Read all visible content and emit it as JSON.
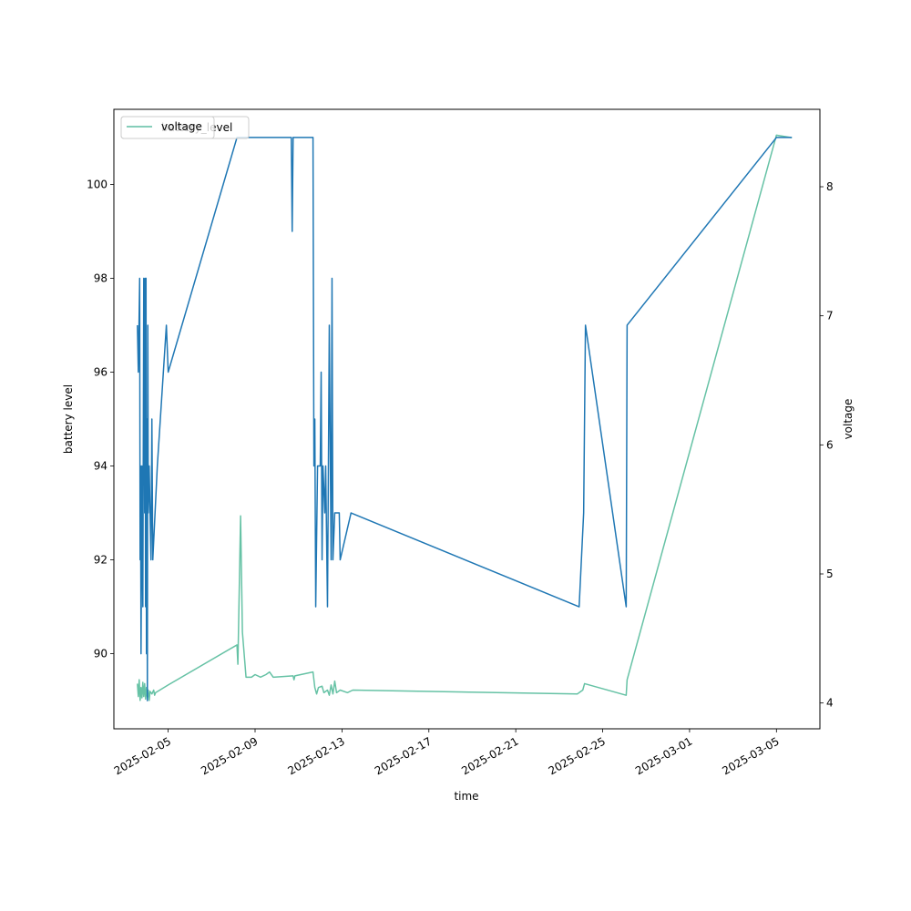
{
  "chart_data": {
    "type": "line",
    "title": "",
    "xlabel": "time",
    "ylabel_left": "battery level",
    "ylabel_right": "voltage",
    "xlim": [
      "2025-02-02T12:00",
      "2025-03-07T00:00"
    ],
    "ylim_left": [
      88.4,
      101.6
    ],
    "ylim_right": [
      3.8,
      8.6
    ],
    "x_ticks": [
      "2025-02-05",
      "2025-02-09",
      "2025-02-13",
      "2025-02-17",
      "2025-02-21",
      "2025-02-25",
      "2025-03-01",
      "2025-03-05"
    ],
    "y_ticks_left": [
      90,
      92,
      94,
      96,
      98,
      100
    ],
    "y_ticks_right": [
      4,
      5,
      6,
      7,
      8
    ],
    "grid": false,
    "colors": {
      "battery_level": "#1f77b4",
      "voltage": "#66c2a5"
    },
    "legends": [
      {
        "position": "top-left",
        "label": "voltage"
      },
      {
        "position": "top-left",
        "label": "battery_level"
      }
    ],
    "series": [
      {
        "name": "battery_level",
        "axis": "left",
        "points": [
          [
            "2025-02-03T14:00",
            97
          ],
          [
            "2025-02-03T15:00",
            96
          ],
          [
            "2025-02-03T16:30",
            98
          ],
          [
            "2025-02-03T17:00",
            92
          ],
          [
            "2025-02-03T17:30",
            94
          ],
          [
            "2025-02-03T18:00",
            90
          ],
          [
            "2025-02-03T19:00",
            94
          ],
          [
            "2025-02-03T20:00",
            91
          ],
          [
            "2025-02-03T21:00",
            98
          ],
          [
            "2025-02-03T22:00",
            93
          ],
          [
            "2025-02-03T22:30",
            98
          ],
          [
            "2025-02-03T23:00",
            91
          ],
          [
            "2025-02-03T23:30",
            98
          ],
          [
            "2025-02-04T00:00",
            90
          ],
          [
            "2025-02-04T00:30",
            95
          ],
          [
            "2025-02-04T01:00",
            89
          ],
          [
            "2025-02-04T01:30",
            97
          ],
          [
            "2025-02-04T02:00",
            93
          ],
          [
            "2025-02-04T03:00",
            94
          ],
          [
            "2025-02-04T05:00",
            92
          ],
          [
            "2025-02-04T06:00",
            95
          ],
          [
            "2025-02-04T07:00",
            92
          ],
          [
            "2025-02-04T12:00",
            94
          ],
          [
            "2025-02-04T22:00",
            97
          ],
          [
            "2025-02-05T00:00",
            96
          ],
          [
            "2025-02-08T04:00",
            101
          ],
          [
            "2025-02-09T12:00",
            101
          ],
          [
            "2025-02-10T16:00",
            101
          ],
          [
            "2025-02-10T17:00",
            99
          ],
          [
            "2025-02-10T18:00",
            101
          ],
          [
            "2025-02-11T16:00",
            101
          ],
          [
            "2025-02-11T17:00",
            94
          ],
          [
            "2025-02-11T18:00",
            95
          ],
          [
            "2025-02-11T19:00",
            91
          ],
          [
            "2025-02-11T21:00",
            94
          ],
          [
            "2025-02-12T00:00",
            94
          ],
          [
            "2025-02-12T01:00",
            96
          ],
          [
            "2025-02-12T02:00",
            92
          ],
          [
            "2025-02-12T03:00",
            94
          ],
          [
            "2025-02-12T05:00",
            93
          ],
          [
            "2025-02-12T06:00",
            94
          ],
          [
            "2025-02-12T08:00",
            91
          ],
          [
            "2025-02-12T10:00",
            97
          ],
          [
            "2025-02-12T12:00",
            92
          ],
          [
            "2025-02-12T13:00",
            98
          ],
          [
            "2025-02-12T14:00",
            92
          ],
          [
            "2025-02-12T16:00",
            93
          ],
          [
            "2025-02-12T21:00",
            93
          ],
          [
            "2025-02-12T22:00",
            92
          ],
          [
            "2025-02-13T10:00",
            93
          ],
          [
            "2025-02-23T22:00",
            91
          ],
          [
            "2025-02-24T03:00",
            93
          ],
          [
            "2025-02-24T05:00",
            97
          ],
          [
            "2025-02-26T02:00",
            91
          ],
          [
            "2025-02-26T03:00",
            97
          ],
          [
            "2025-03-05T00:00",
            101
          ],
          [
            "2025-03-05T17:00",
            101
          ]
        ]
      },
      {
        "name": "voltage",
        "axis": "right",
        "points": [
          [
            "2025-02-03T14:00",
            4.15
          ],
          [
            "2025-02-03T15:00",
            4.05
          ],
          [
            "2025-02-03T16:00",
            4.18
          ],
          [
            "2025-02-03T17:00",
            4.02
          ],
          [
            "2025-02-03T18:00",
            4.12
          ],
          [
            "2025-02-03T19:00",
            4.04
          ],
          [
            "2025-02-03T20:00",
            4.16
          ],
          [
            "2025-02-03T21:00",
            4.05
          ],
          [
            "2025-02-03T22:00",
            4.15
          ],
          [
            "2025-02-03T23:00",
            4.03
          ],
          [
            "2025-02-04T00:00",
            4.12
          ],
          [
            "2025-02-04T01:00",
            4.04
          ],
          [
            "2025-02-04T02:00",
            4.1
          ],
          [
            "2025-02-04T03:00",
            4.02
          ],
          [
            "2025-02-04T04:00",
            4.09
          ],
          [
            "2025-02-04T06:00",
            4.07
          ],
          [
            "2025-02-04T08:00",
            4.1
          ],
          [
            "2025-02-04T09:00",
            4.06
          ],
          [
            "2025-02-04T10:00",
            4.08
          ],
          [
            "2025-02-05T00:00",
            4.14
          ],
          [
            "2025-02-08T04:00",
            4.45
          ],
          [
            "2025-02-08T05:00",
            4.3
          ],
          [
            "2025-02-08T08:00",
            5.45
          ],
          [
            "2025-02-08T10:00",
            4.55
          ],
          [
            "2025-02-08T14:00",
            4.2
          ],
          [
            "2025-02-08T20:00",
            4.2
          ],
          [
            "2025-02-09T00:00",
            4.22
          ],
          [
            "2025-02-09T06:00",
            4.2
          ],
          [
            "2025-02-09T12:00",
            4.22
          ],
          [
            "2025-02-09T16:00",
            4.24
          ],
          [
            "2025-02-09T20:00",
            4.2
          ],
          [
            "2025-02-10T18:00",
            4.21
          ],
          [
            "2025-02-10T19:00",
            4.18
          ],
          [
            "2025-02-10T20:00",
            4.21
          ],
          [
            "2025-02-11T16:00",
            4.24
          ],
          [
            "2025-02-11T18:00",
            4.12
          ],
          [
            "2025-02-11T20:00",
            4.07
          ],
          [
            "2025-02-11T22:00",
            4.12
          ],
          [
            "2025-02-12T02:00",
            4.13
          ],
          [
            "2025-02-12T04:00",
            4.08
          ],
          [
            "2025-02-12T08:00",
            4.1
          ],
          [
            "2025-02-12T10:00",
            4.06
          ],
          [
            "2025-02-12T12:00",
            4.14
          ],
          [
            "2025-02-12T14:00",
            4.07
          ],
          [
            "2025-02-12T16:00",
            4.17
          ],
          [
            "2025-02-12T18:00",
            4.08
          ],
          [
            "2025-02-12T22:00",
            4.1
          ],
          [
            "2025-02-13T06:00",
            4.08
          ],
          [
            "2025-02-13T12:00",
            4.1
          ],
          [
            "2025-02-23T20:00",
            4.07
          ],
          [
            "2025-02-24T02:00",
            4.1
          ],
          [
            "2025-02-24T04:00",
            4.15
          ],
          [
            "2025-02-26T02:00",
            4.06
          ],
          [
            "2025-02-26T03:00",
            4.18
          ],
          [
            "2025-03-05T00:00",
            8.4
          ],
          [
            "2025-03-05T17:00",
            8.38
          ]
        ]
      }
    ]
  }
}
